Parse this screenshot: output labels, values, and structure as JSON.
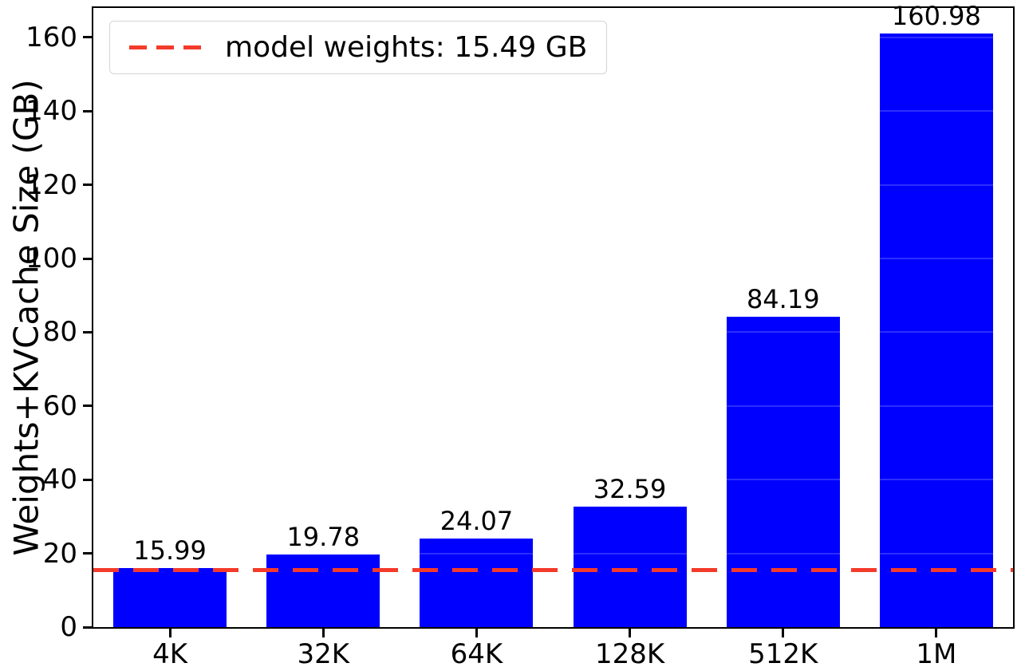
{
  "chart_data": {
    "type": "bar",
    "title": "",
    "xlabel": "",
    "ylabel": "Weights+KVCache Size (GB)",
    "categories": [
      "4K",
      "32K",
      "64K",
      "128K",
      "512K",
      "1M"
    ],
    "values": [
      15.99,
      19.78,
      24.07,
      32.59,
      84.19,
      160.98
    ],
    "bar_labels": [
      "15.99",
      "19.78",
      "24.07",
      "32.59",
      "84.19",
      "160.98"
    ],
    "ylim": [
      0,
      168
    ],
    "yticks": [
      0,
      20,
      40,
      60,
      80,
      100,
      120,
      140,
      160
    ],
    "bar_color": "#0000ff",
    "grid": true,
    "grid_color": "rgba(255,255,255,0.18)",
    "legend_position": "upper-left",
    "reference_line": {
      "value": 15.49,
      "style": "dashed",
      "color": "#f43a2a",
      "label": "model weights: 15.49 GB"
    }
  }
}
